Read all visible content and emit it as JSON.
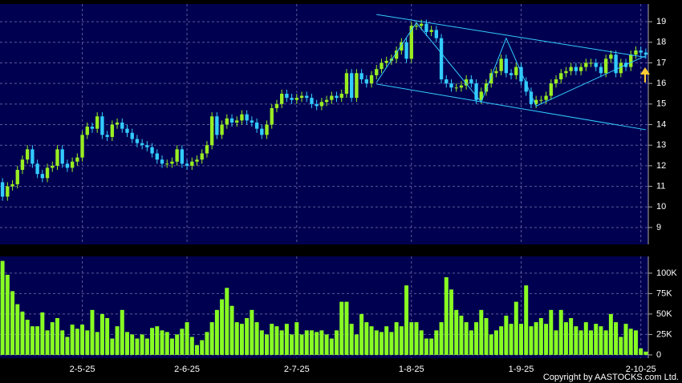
{
  "chart_data": [
    {
      "type": "candlestick",
      "up_color": "#99ee22",
      "down_color": "#33ccff",
      "grid": true,
      "ylim": [
        8.18,
        19.86
      ],
      "yticks": [
        9,
        10,
        11,
        12,
        13,
        14,
        15,
        16,
        17,
        18,
        19
      ],
      "open": [
        11.2,
        10.5,
        11.0,
        11.1,
        11.8,
        12.3,
        12.8,
        12.1,
        11.6,
        11.4,
        11.9,
        12.0,
        12.8,
        12.1,
        11.9,
        12.2,
        12.4,
        13.5,
        13.9,
        13.8,
        14.4,
        13.5,
        13.4,
        14.0,
        14.1,
        13.8,
        13.6,
        13.3,
        13.1,
        13.0,
        12.9,
        12.6,
        12.3,
        12.1,
        12.1,
        12.2,
        12.8,
        12.1,
        12.0,
        12.2,
        12.3,
        12.6,
        13.0,
        14.4,
        13.5,
        14.0,
        14.3,
        14.1,
        14.2,
        14.5,
        14.2,
        14.1,
        13.8,
        13.5,
        14.0,
        14.8,
        15.0,
        15.5,
        15.3,
        15.2,
        15.3,
        15.4,
        15.3,
        15.0,
        14.9,
        15.1,
        15.2,
        15.4,
        15.3,
        15.5,
        16.5,
        15.3,
        16.5,
        16.2,
        16.0,
        16.4,
        16.7,
        17.0,
        17.1,
        17.2,
        17.6,
        18.0,
        17.2,
        18.8,
        18.8,
        18.9,
        18.5,
        18.6,
        18.2,
        16.2,
        16.0,
        15.8,
        15.8,
        15.9,
        16.2,
        16.0,
        15.2,
        15.6,
        16.0,
        16.5,
        16.6,
        17.2,
        16.5,
        16.4,
        16.8,
        16.1,
        15.6,
        15.0,
        15.2,
        15.2,
        15.4,
        16.0,
        16.2,
        16.5,
        16.6,
        16.8,
        16.6,
        16.8,
        17.0,
        17.0,
        16.8,
        16.5,
        17.2,
        17.4,
        16.5,
        17.0,
        16.8,
        17.4,
        17.6,
        17.5
      ],
      "high": [
        11.4,
        11.2,
        11.3,
        12.0,
        12.5,
        13.0,
        13.0,
        12.3,
        11.8,
        12.1,
        12.2,
        13.0,
        13.0,
        12.3,
        12.4,
        12.6,
        13.7,
        14.1,
        14.1,
        14.6,
        14.6,
        13.7,
        14.2,
        14.3,
        14.3,
        14.0,
        13.8,
        13.5,
        13.3,
        13.2,
        13.1,
        12.8,
        12.5,
        12.3,
        12.4,
        13.0,
        13.0,
        12.3,
        12.4,
        12.5,
        12.8,
        13.2,
        14.6,
        14.6,
        14.2,
        14.5,
        14.5,
        14.4,
        14.7,
        14.7,
        14.4,
        14.3,
        14.0,
        14.2,
        15.0,
        15.2,
        15.7,
        15.7,
        15.5,
        15.5,
        15.6,
        15.6,
        15.5,
        15.2,
        15.3,
        15.4,
        15.6,
        15.6,
        15.7,
        16.7,
        16.7,
        16.7,
        16.7,
        16.4,
        16.6,
        16.9,
        17.2,
        17.3,
        17.4,
        17.8,
        18.2,
        18.2,
        19.0,
        19.0,
        19.1,
        19.1,
        18.8,
        18.8,
        18.4,
        16.4,
        16.2,
        16.0,
        16.1,
        16.4,
        16.4,
        16.2,
        15.8,
        16.2,
        16.7,
        16.8,
        17.4,
        17.4,
        16.7,
        17.0,
        17.0,
        16.3,
        15.8,
        15.4,
        15.4,
        15.6,
        16.2,
        16.4,
        16.7,
        16.8,
        17.0,
        17.0,
        17.0,
        17.2,
        17.2,
        17.2,
        17.0,
        17.4,
        17.6,
        17.6,
        17.2,
        17.2,
        17.6,
        17.8,
        17.8,
        17.7
      ],
      "low": [
        10.3,
        10.3,
        10.8,
        10.9,
        11.6,
        12.1,
        11.9,
        11.4,
        11.2,
        11.2,
        11.7,
        11.8,
        11.9,
        11.7,
        11.7,
        12.0,
        12.2,
        13.3,
        13.6,
        13.6,
        13.3,
        13.2,
        13.2,
        13.8,
        13.6,
        13.4,
        13.1,
        12.9,
        12.8,
        12.7,
        12.4,
        12.1,
        11.9,
        11.9,
        11.9,
        12.0,
        11.9,
        11.8,
        11.8,
        12.0,
        12.1,
        12.4,
        12.8,
        13.3,
        13.3,
        13.8,
        13.9,
        13.9,
        14.0,
        14.0,
        13.9,
        13.6,
        13.3,
        13.3,
        13.8,
        14.6,
        14.8,
        15.1,
        15.0,
        15.0,
        15.1,
        15.1,
        14.8,
        14.7,
        14.7,
        14.9,
        15.0,
        15.1,
        15.1,
        15.3,
        15.1,
        15.1,
        16.0,
        15.8,
        15.8,
        16.2,
        16.5,
        16.8,
        16.9,
        17.0,
        17.4,
        17.0,
        17.0,
        18.6,
        18.6,
        18.3,
        18.3,
        18.0,
        16.0,
        15.8,
        15.6,
        15.6,
        15.6,
        15.7,
        15.8,
        15.0,
        15.0,
        15.4,
        15.8,
        16.3,
        16.4,
        16.3,
        16.2,
        16.2,
        15.9,
        15.4,
        14.8,
        14.8,
        15.0,
        15.0,
        15.2,
        15.8,
        16.0,
        16.3,
        16.4,
        16.4,
        16.4,
        16.6,
        16.8,
        16.6,
        16.3,
        16.3,
        17.0,
        16.3,
        16.3,
        16.6,
        16.6,
        17.2,
        17.3,
        17.2
      ],
      "close": [
        10.5,
        11.0,
        11.1,
        11.8,
        12.3,
        12.8,
        12.1,
        11.6,
        11.4,
        11.9,
        12.0,
        12.8,
        12.1,
        11.9,
        12.2,
        12.4,
        13.5,
        13.9,
        13.8,
        14.4,
        13.5,
        13.4,
        14.0,
        14.1,
        13.8,
        13.6,
        13.3,
        13.1,
        13.0,
        12.9,
        12.6,
        12.3,
        12.1,
        12.1,
        12.2,
        12.8,
        12.1,
        12.0,
        12.2,
        12.3,
        12.6,
        13.0,
        14.4,
        13.5,
        14.0,
        14.3,
        14.1,
        14.2,
        14.5,
        14.2,
        14.1,
        13.8,
        13.5,
        14.0,
        14.8,
        15.0,
        15.5,
        15.3,
        15.2,
        15.3,
        15.4,
        15.3,
        15.0,
        14.9,
        15.1,
        15.2,
        15.4,
        15.3,
        15.5,
        16.5,
        15.3,
        16.5,
        16.2,
        16.0,
        16.4,
        16.7,
        17.0,
        17.1,
        17.2,
        17.6,
        18.0,
        17.2,
        18.8,
        18.8,
        18.9,
        18.5,
        18.6,
        18.2,
        16.2,
        16.0,
        15.8,
        15.8,
        15.9,
        16.2,
        16.0,
        15.2,
        15.6,
        16.0,
        16.5,
        16.6,
        17.2,
        16.5,
        16.4,
        16.8,
        16.1,
        15.6,
        15.0,
        15.2,
        15.2,
        15.4,
        16.0,
        16.2,
        16.5,
        16.6,
        16.8,
        16.6,
        16.8,
        17.0,
        17.0,
        16.8,
        16.5,
        17.2,
        17.4,
        16.5,
        17.0,
        16.8,
        17.4,
        17.6,
        17.5,
        17.4
      ],
      "trend_lines": [
        {
          "color": "#33ccff",
          "x": [
            75,
            129
          ],
          "y": [
            19.35,
            17.27
          ]
        },
        {
          "color": "#33ccff",
          "x": [
            75,
            129
          ],
          "y": [
            15.97,
            13.75
          ]
        },
        {
          "color": "#33ccff",
          "x": [
            75,
            83,
            96,
            101,
            107,
            129
          ],
          "y": [
            16.05,
            18.95,
            15.1,
            18.2,
            14.9,
            17.35
          ]
        }
      ]
    },
    {
      "type": "bar",
      "color": "#88ff22",
      "grid": true,
      "ylim": [
        -4000,
        120500
      ],
      "yticks": [
        0,
        {
          "value": 25000,
          "label": "25K"
        },
        {
          "value": 50000,
          "label": "50K"
        },
        {
          "value": 75000,
          "label": "75K"
        },
        {
          "value": 100000,
          "label": "100K"
        }
      ],
      "categories": [
        null,
        null,
        null,
        null,
        null,
        null,
        null,
        null,
        null,
        null,
        null,
        null,
        null,
        null,
        null,
        null,
        "2-5-25",
        null,
        null,
        null,
        null,
        null,
        null,
        null,
        null,
        null,
        null,
        null,
        null,
        null,
        null,
        null,
        null,
        null,
        null,
        null,
        null,
        "2-6-25",
        null,
        null,
        null,
        null,
        null,
        null,
        null,
        null,
        null,
        null,
        null,
        null,
        null,
        null,
        null,
        null,
        null,
        null,
        null,
        null,
        null,
        "2-7-25",
        null,
        null,
        null,
        null,
        null,
        null,
        null,
        null,
        null,
        null,
        null,
        null,
        null,
        null,
        null,
        null,
        null,
        null,
        null,
        null,
        null,
        null,
        "1-8-25",
        null,
        null,
        null,
        null,
        null,
        null,
        null,
        null,
        null,
        null,
        null,
        null,
        null,
        null,
        null,
        null,
        null,
        null,
        null,
        null,
        null,
        "1-9-25",
        null,
        null,
        null,
        null,
        null,
        null,
        null,
        null,
        null,
        null,
        null,
        null,
        null,
        null,
        null,
        null,
        null,
        null,
        null,
        null,
        null,
        null,
        null,
        "2-10-25",
        null
      ],
      "values": [
        115000,
        98000,
        78000,
        62000,
        53000,
        43000,
        35000,
        35000,
        52000,
        30000,
        40000,
        45000,
        30000,
        22000,
        37000,
        32000,
        37000,
        30000,
        55000,
        28000,
        50000,
        45000,
        20000,
        35000,
        55000,
        28000,
        25000,
        20000,
        25000,
        20000,
        33000,
        35000,
        30000,
        28000,
        20000,
        25000,
        32000,
        40000,
        22000,
        12000,
        18000,
        28000,
        40000,
        55000,
        68000,
        82000,
        60000,
        40000,
        38000,
        45000,
        55000,
        40000,
        30000,
        25000,
        38000,
        35000,
        30000,
        38000,
        25000,
        40000,
        25000,
        30000,
        30000,
        28000,
        30000,
        25000,
        20000,
        30000,
        65000,
        65000,
        38000,
        25000,
        50000,
        40000,
        35000,
        30000,
        28000,
        35000,
        28000,
        40000,
        35000,
        85000,
        40000,
        40000,
        30000,
        20000,
        20000,
        30000,
        40000,
        95000,
        80000,
        55000,
        48000,
        40000,
        30000,
        40000,
        55000,
        45000,
        25000,
        30000,
        35000,
        48000,
        38000,
        65000,
        38000,
        85000,
        35000,
        40000,
        45000,
        38000,
        55000,
        30000,
        55000,
        40000,
        45000,
        35000,
        30000,
        40000,
        30000,
        38000,
        35000,
        30000,
        50000,
        40000,
        22000,
        38000,
        32000,
        30000,
        8000,
        4000
      ]
    }
  ],
  "copyright": "Copyright by AASTOCKS.com Ltd."
}
